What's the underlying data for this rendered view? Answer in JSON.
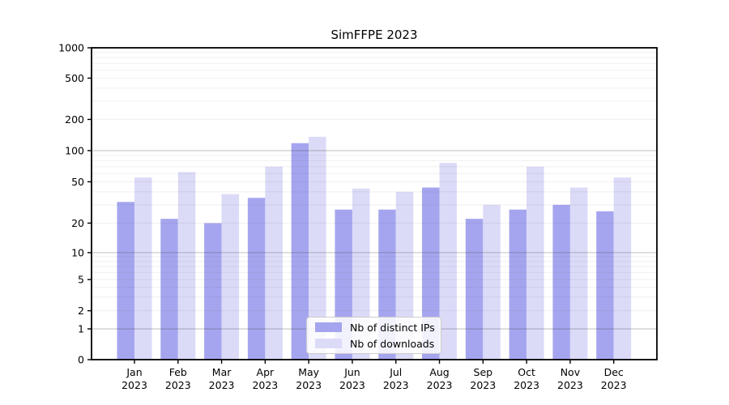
{
  "chart_data": {
    "type": "bar",
    "title": "SimFFPE 2023",
    "x": [
      {
        "month": "Jan",
        "year": "2023"
      },
      {
        "month": "Feb",
        "year": "2023"
      },
      {
        "month": "Mar",
        "year": "2023"
      },
      {
        "month": "Apr",
        "year": "2023"
      },
      {
        "month": "May",
        "year": "2023"
      },
      {
        "month": "Jun",
        "year": "2023"
      },
      {
        "month": "Jul",
        "year": "2023"
      },
      {
        "month": "Aug",
        "year": "2023"
      },
      {
        "month": "Sep",
        "year": "2023"
      },
      {
        "month": "Oct",
        "year": "2023"
      },
      {
        "month": "Nov",
        "year": "2023"
      },
      {
        "month": "Dec",
        "year": "2023"
      }
    ],
    "series": [
      {
        "name": "Nb of distinct IPs",
        "color": "#a5a5ef",
        "values": [
          32,
          22,
          20,
          35,
          118,
          27,
          27,
          44,
          22,
          27,
          30,
          26
        ]
      },
      {
        "name": "Nb of downloads",
        "color": "#dbdbf8",
        "values": [
          55,
          62,
          38,
          70,
          136,
          43,
          40,
          76,
          30,
          70,
          44,
          55
        ]
      }
    ],
    "y_axis": {
      "scale": "symlog",
      "tick_values": [
        0,
        1,
        2,
        5,
        10,
        20,
        50,
        100,
        200,
        500,
        1000
      ],
      "tick_labels": [
        "0",
        "1",
        "2",
        "5",
        "10",
        "20",
        "50",
        "100",
        "200",
        "500",
        "1000"
      ],
      "range": [
        0,
        1000
      ]
    },
    "grid": true,
    "legend_position": "lower center",
    "colors": {
      "axis": "#000000",
      "major_grid": "rgba(60,60,60,0.25)",
      "minor_grid": "rgba(60,60,60,0.08)",
      "text": "#000000"
    }
  }
}
